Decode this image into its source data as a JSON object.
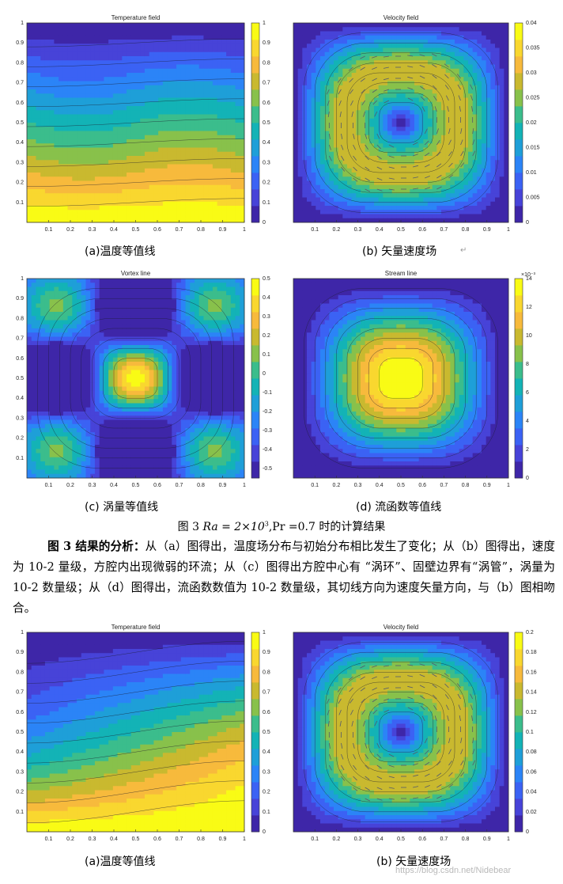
{
  "figure_3": {
    "panels": [
      {
        "id": "a",
        "plot_title": "Temperature field",
        "caption": "(a)温度等值线"
      },
      {
        "id": "b",
        "plot_title": "Velocity field",
        "caption": "(b) 矢量速度场"
      },
      {
        "id": "c",
        "plot_title": "Vortex line",
        "caption": "(c) 涡量等值线"
      },
      {
        "id": "d",
        "plot_title": "Stream line",
        "caption": "(d) 流函数等值线"
      }
    ],
    "caption_prefix": "图 3",
    "caption_math": "Ra = 2×10",
    "caption_exp": "3",
    "caption_suffix": ",Pr =0.7 时的计算结果"
  },
  "analysis": {
    "lead": "图 3 结果的分析：",
    "text": "从（a）图得出，温度场分布与初始分布相比发生了变化；从（b）图得出，速度为 10-2 量级，方腔内出现微弱的环流；从（c）图得出方腔中心有 “涡环”、固壁边界有“涡管”，涡量为 10-2 数量级；从（d）图得出，流函数数值为 10-2 数量级，其切线方向为速度矢量方向，与（b）图相吻合。"
  },
  "figure_4": {
    "panels": [
      {
        "id": "a",
        "plot_title": "Temperature field",
        "caption": "(a)温度等值线"
      },
      {
        "id": "b",
        "plot_title": "Velocity field",
        "caption": "(b) 矢量速度场"
      }
    ]
  },
  "watermark": "https://blog.csdn.net/Nidebear",
  "chart_data": [
    {
      "type": "heatmap",
      "title": "Temperature field",
      "xlim": [
        0,
        1
      ],
      "ylim": [
        0,
        1
      ],
      "xticks": [
        "0.1",
        "0.2",
        "0.3",
        "0.4",
        "0.5",
        "0.6",
        "0.7",
        "0.8",
        "0.9",
        "1"
      ],
      "yticks": [
        "0.1",
        "0.2",
        "0.3",
        "0.4",
        "0.5",
        "0.6",
        "0.7",
        "0.8",
        "0.9",
        "1"
      ],
      "colorbar_ticks": [
        "0",
        "0.1",
        "0.2",
        "0.3",
        "0.4",
        "0.5",
        "0.6",
        "0.7",
        "0.8",
        "0.9",
        "1"
      ],
      "colorbar_range": [
        0,
        1
      ]
    },
    {
      "type": "heatmap",
      "title": "Velocity field",
      "xlim": [
        0,
        1
      ],
      "ylim": [
        0,
        1
      ],
      "xticks": [
        "0.1",
        "0.2",
        "0.3",
        "0.4",
        "0.5",
        "0.6",
        "0.7",
        "0.8",
        "0.9",
        "1"
      ],
      "yticks": [],
      "colorbar_ticks": [
        "0",
        "0.005",
        "0.01",
        "0.015",
        "0.02",
        "0.025",
        "0.03",
        "0.035",
        "0.04"
      ],
      "colorbar_range": [
        0,
        0.04
      ]
    },
    {
      "type": "heatmap",
      "title": "Vortex line",
      "xlim": [
        0,
        1
      ],
      "ylim": [
        0,
        1
      ],
      "xticks": [
        "0.1",
        "0.2",
        "0.3",
        "0.4",
        "0.5",
        "0.6",
        "0.7",
        "0.8",
        "0.9",
        "1"
      ],
      "yticks": [
        "0.1",
        "0.2",
        "0.3",
        "0.4",
        "0.5",
        "0.6",
        "0.7",
        "0.8",
        "0.9",
        "1"
      ],
      "colorbar_ticks": [
        "-0.5",
        "-0.4",
        "-0.3",
        "-0.2",
        "-0.1",
        "0",
        "0.1",
        "0.2",
        "0.3",
        "0.4",
        "0.5"
      ],
      "colorbar_range": [
        -0.55,
        0.5
      ]
    },
    {
      "type": "heatmap",
      "title": "Stream line",
      "xlim": [
        0,
        1
      ],
      "ylim": [
        0,
        1
      ],
      "xticks": [
        "0.1",
        "0.2",
        "0.3",
        "0.4",
        "0.5",
        "0.6",
        "0.7",
        "0.8",
        "0.9",
        "1"
      ],
      "yticks": [],
      "colorbar_ticks": [
        "0",
        "2",
        "4",
        "6",
        "8",
        "10",
        "12",
        "14"
      ],
      "colorbar_range": [
        0,
        14
      ],
      "colorbar_multiplier": "×10⁻³"
    },
    {
      "type": "heatmap",
      "title": "Temperature field",
      "xlim": [
        0,
        1
      ],
      "ylim": [
        0,
        1
      ],
      "xticks": [
        "0.1",
        "0.2",
        "0.3",
        "0.4",
        "0.5",
        "0.6",
        "0.7",
        "0.8",
        "0.9",
        "1"
      ],
      "yticks": [
        "0.1",
        "0.2",
        "0.3",
        "0.4",
        "0.5",
        "0.6",
        "0.7",
        "0.8",
        "0.9",
        "1"
      ],
      "colorbar_ticks": [
        "0",
        "0.1",
        "0.2",
        "0.3",
        "0.4",
        "0.5",
        "0.6",
        "0.7",
        "0.8",
        "0.9",
        "1"
      ],
      "colorbar_range": [
        0,
        1
      ]
    },
    {
      "type": "heatmap",
      "title": "Velocity field",
      "xlim": [
        0,
        1
      ],
      "ylim": [
        0,
        1
      ],
      "xticks": [
        "0.1",
        "0.2",
        "0.3",
        "0.4",
        "0.5",
        "0.6",
        "0.7",
        "0.8",
        "0.9",
        "1"
      ],
      "yticks": [],
      "colorbar_ticks": [
        "0",
        "0.02",
        "0.04",
        "0.06",
        "0.08",
        "0.1",
        "0.12",
        "0.14",
        "0.16",
        "0.18",
        "0.2"
      ],
      "colorbar_range": [
        0,
        0.2
      ]
    }
  ]
}
